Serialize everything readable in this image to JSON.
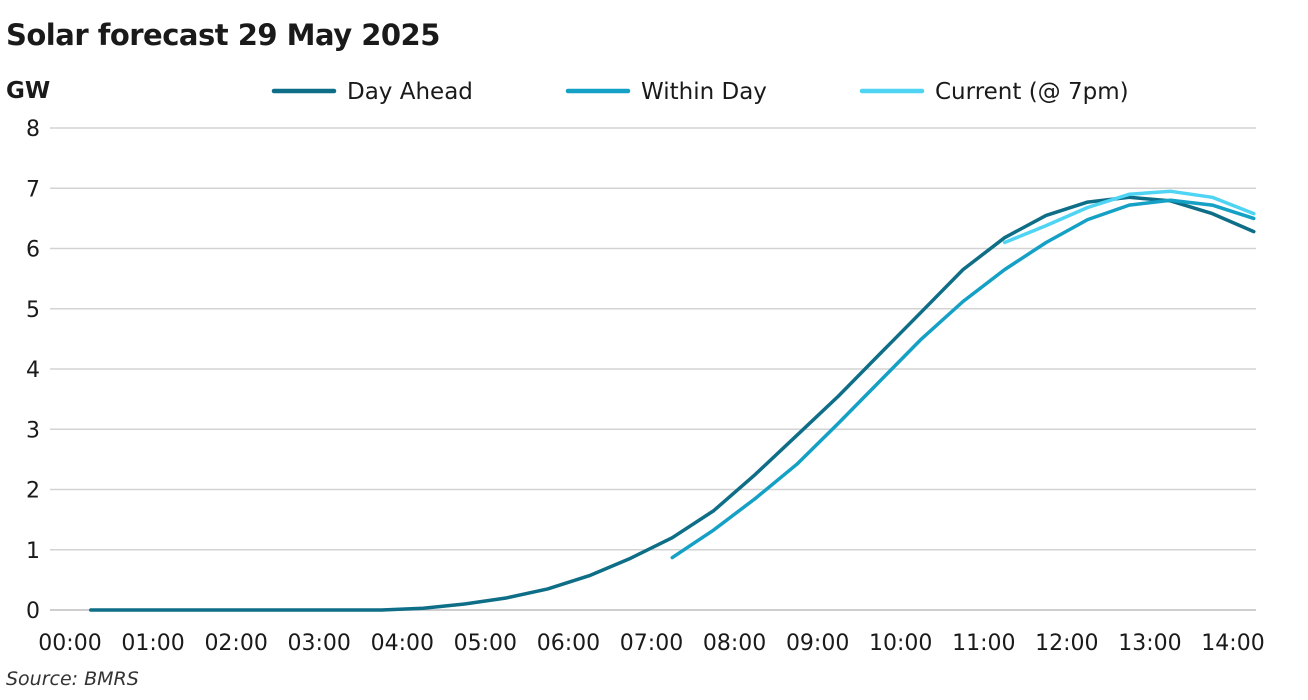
{
  "chart_data": {
    "type": "line",
    "title": "Solar forecast 29 May 2025",
    "ylabel": "GW",
    "xlabel": "",
    "source": "Source: BMRS",
    "ylim": [
      0,
      8
    ],
    "xlim": [
      0,
      14
    ],
    "yticks": [
      "0",
      "1",
      "2",
      "3",
      "4",
      "5",
      "6",
      "7",
      "8"
    ],
    "xticks": [
      "00:00",
      "01:00",
      "02:00",
      "03:00",
      "04:00",
      "05:00",
      "06:00",
      "07:00",
      "08:00",
      "09:00",
      "10:00",
      "11:00",
      "12:00",
      "13:00",
      "14:00"
    ],
    "grid": true,
    "legend_position": "top",
    "series": [
      {
        "name": "Day Ahead",
        "color": "#0e6e87",
        "x": [
          0.25,
          0.75,
          1.25,
          1.75,
          2.25,
          2.75,
          3.25,
          3.75,
          4.25,
          4.75,
          5.25,
          5.75,
          6.25,
          6.75,
          7.25,
          7.75,
          8.25,
          8.75,
          9.25,
          9.75,
          10.25,
          10.75,
          11.25,
          11.75,
          12.25,
          12.75,
          13.25,
          13.75,
          14.25
        ],
        "values": [
          0,
          0,
          0,
          0,
          0,
          0,
          0,
          0,
          0.03,
          0.1,
          0.2,
          0.35,
          0.57,
          0.86,
          1.2,
          1.65,
          2.25,
          2.9,
          3.55,
          4.25,
          4.95,
          5.65,
          6.18,
          6.55,
          6.77,
          6.85,
          6.79,
          6.58,
          6.28
        ]
      },
      {
        "name": "Within Day",
        "color": "#15a0c6",
        "x": [
          7.25,
          7.75,
          8.25,
          8.75,
          9.25,
          9.75,
          10.25,
          10.75,
          11.25,
          11.75,
          12.25,
          12.75,
          13.25,
          13.75,
          14.25
        ],
        "values": [
          0.87,
          1.33,
          1.85,
          2.42,
          3.1,
          3.8,
          4.5,
          5.12,
          5.65,
          6.1,
          6.48,
          6.72,
          6.8,
          6.72,
          6.5
        ]
      },
      {
        "name": "Current (@ 7pm)",
        "color": "#4fd4f3",
        "x": [
          11.25,
          11.75,
          12.25,
          12.75,
          13.25,
          13.75,
          14.25
        ],
        "values": [
          6.1,
          6.38,
          6.68,
          6.9,
          6.95,
          6.85,
          6.58
        ]
      }
    ]
  }
}
